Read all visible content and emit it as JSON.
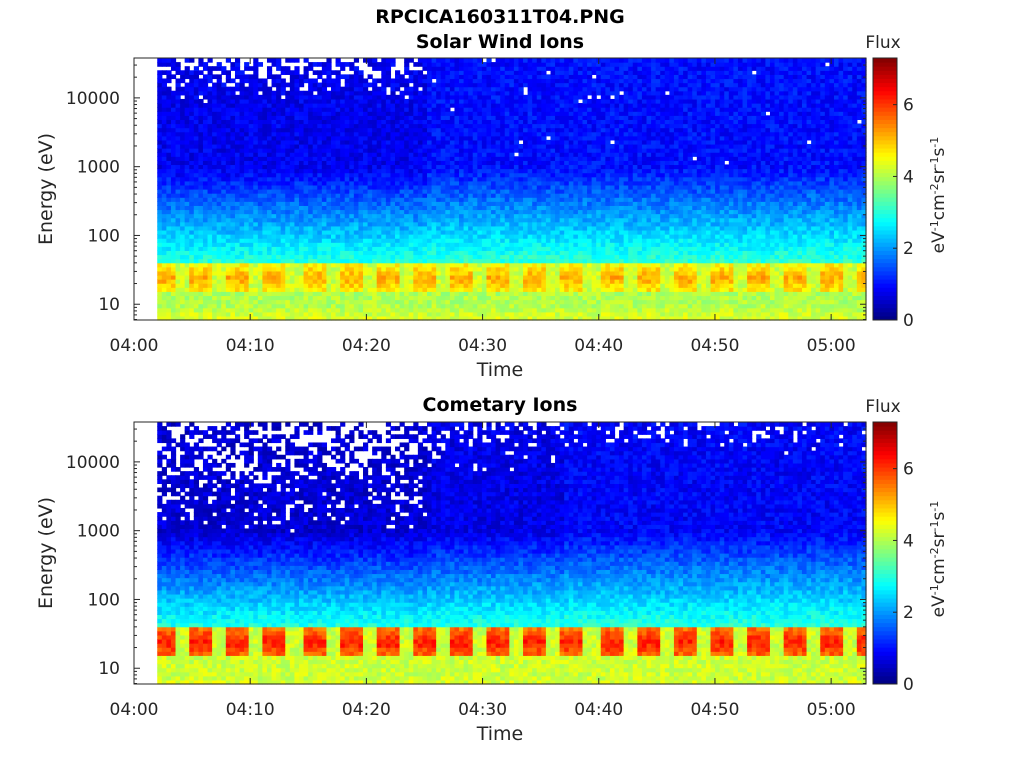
{
  "figure_title": "RPCICA160311T04.PNG",
  "colorbar": {
    "title": "Flux",
    "label_parts": [
      "eV",
      "-1",
      "cm",
      "-2",
      "sr",
      "-1",
      "s",
      "-1"
    ],
    "range": [
      0,
      7.3
    ],
    "ticks": [
      "0",
      "2",
      "4",
      "6"
    ],
    "colormap": "jet"
  },
  "chart_data": [
    {
      "type": "heatmap",
      "title": "Solar Wind Ions",
      "xlabel": "Time",
      "ylabel": "Energy (eV)",
      "x_ticks": [
        "04:00",
        "04:10",
        "04:20",
        "04:30",
        "04:40",
        "04:50",
        "05:00"
      ],
      "y_ticks": [
        "10",
        "100",
        "1000",
        "10000"
      ],
      "y_scale": "log",
      "xlim": [
        "04:00",
        "05:03"
      ],
      "ylim": [
        5.9,
        38000
      ],
      "data_start": "04:02",
      "features": {
        "low_energy_band_eV": [
          15,
          40
        ],
        "peak_flux": 5.2,
        "peak_period_min": 3.2,
        "background_flux_high_energy_before_0425": 0.8,
        "background_flux_high_energy_after_0425": 1.0
      }
    },
    {
      "type": "heatmap",
      "title": "Cometary Ions",
      "xlabel": "Time",
      "ylabel": "Energy (eV)",
      "x_ticks": [
        "04:00",
        "04:10",
        "04:20",
        "04:30",
        "04:40",
        "04:50",
        "05:00"
      ],
      "y_ticks": [
        "10",
        "100",
        "1000",
        "10000"
      ],
      "y_scale": "log",
      "xlim": [
        "04:00",
        "05:03"
      ],
      "ylim": [
        5.9,
        38000
      ],
      "data_start": "04:02",
      "features": {
        "low_energy_band_eV": [
          15,
          40
        ],
        "peak_flux": 6.2,
        "peak_period_min": 3.2,
        "background_flux_high_energy_before_0425": 0.6,
        "background_flux_high_energy_after_0437": 0.9
      }
    }
  ]
}
